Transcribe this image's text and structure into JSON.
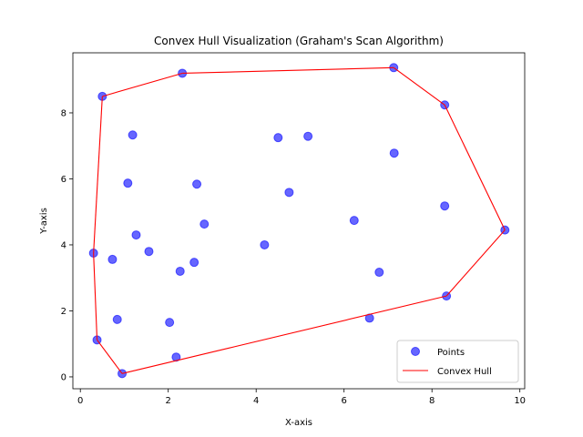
{
  "chart_data": {
    "type": "scatter",
    "title": "Convex Hull Visualization (Graham's Scan Algorithm)",
    "xlabel": "X-axis",
    "ylabel": "Y-axis",
    "xlim": [
      -0.17,
      10.11
    ],
    "ylim": [
      -0.36,
      9.82
    ],
    "xticks": [
      0,
      2,
      4,
      6,
      8,
      10
    ],
    "yticks": [
      0,
      2,
      4,
      6,
      8
    ],
    "grid": false,
    "legend_position": "lower-right",
    "colors": {
      "points": "#0000ff",
      "hull": "#ff0000"
    },
    "series": [
      {
        "name": "Points",
        "type": "scatter",
        "points": [
          [
            0.3,
            3.75
          ],
          [
            0.38,
            1.12
          ],
          [
            0.5,
            8.5
          ],
          [
            0.73,
            3.56
          ],
          [
            0.84,
            1.74
          ],
          [
            0.95,
            0.1
          ],
          [
            1.08,
            5.87
          ],
          [
            1.19,
            7.33
          ],
          [
            1.27,
            4.3
          ],
          [
            1.56,
            3.8
          ],
          [
            2.03,
            1.65
          ],
          [
            2.18,
            0.6
          ],
          [
            2.27,
            3.2
          ],
          [
            2.32,
            9.2
          ],
          [
            2.59,
            3.47
          ],
          [
            2.65,
            5.84
          ],
          [
            2.82,
            4.63
          ],
          [
            4.19,
            4.0
          ],
          [
            4.5,
            7.25
          ],
          [
            4.75,
            5.59
          ],
          [
            5.18,
            7.29
          ],
          [
            6.23,
            4.74
          ],
          [
            6.58,
            1.78
          ],
          [
            6.8,
            3.17
          ],
          [
            7.13,
            9.37
          ],
          [
            7.14,
            6.78
          ],
          [
            8.29,
            8.24
          ],
          [
            8.29,
            5.18
          ],
          [
            8.33,
            2.45
          ],
          [
            9.66,
            4.45
          ]
        ]
      },
      {
        "name": "Convex Hull",
        "type": "line",
        "points": [
          [
            0.95,
            0.1
          ],
          [
            8.33,
            2.45
          ],
          [
            9.66,
            4.45
          ],
          [
            8.29,
            8.24
          ],
          [
            7.13,
            9.37
          ],
          [
            2.32,
            9.2
          ],
          [
            0.5,
            8.5
          ],
          [
            0.3,
            3.75
          ],
          [
            0.38,
            1.12
          ],
          [
            0.95,
            0.1
          ]
        ]
      }
    ]
  }
}
